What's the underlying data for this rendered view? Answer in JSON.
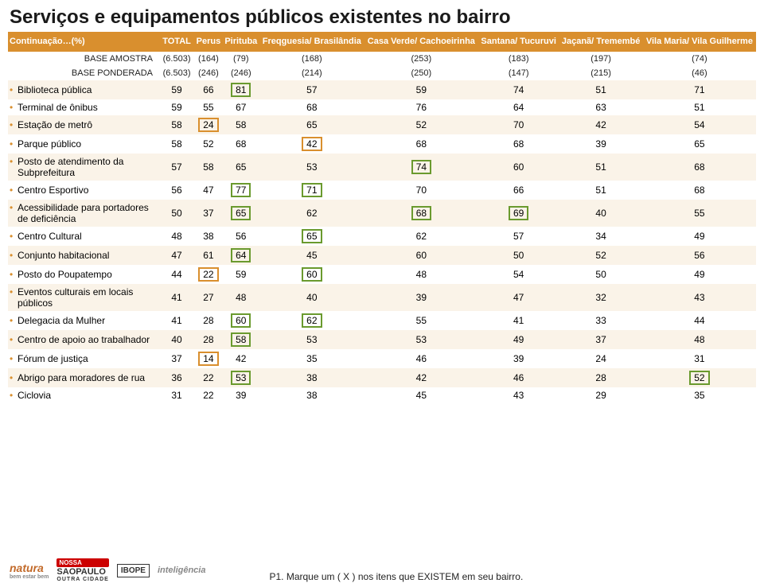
{
  "title": "Serviços e equipamentos públicos existentes no bairro",
  "footnote": "P1. Marque um ( X ) nos itens que EXISTEM em seu bairro.",
  "columns": [
    {
      "label": "Continuação…(%)",
      "width": 190
    },
    {
      "label": "TOTAL"
    },
    {
      "label": "Perus"
    },
    {
      "label": "Pirituba"
    },
    {
      "label": "Freqguesia/ Brasilândia"
    },
    {
      "label": "Casa Verde/ Cachoeirinha"
    },
    {
      "label": "Santana/ Tucuruvi"
    },
    {
      "label": "Jaçanã/ Tremembé"
    },
    {
      "label": "Vila Maria/ Vila Guilherme"
    }
  ],
  "base_rows": [
    {
      "label": "BASE AMOSTRA",
      "cells": [
        "(6.503)",
        "(164)",
        "(79)",
        "(168)",
        "(253)",
        "(183)",
        "(197)",
        "(74)"
      ]
    },
    {
      "label": "BASE PONDERADA",
      "cells": [
        "(6.503)",
        "(246)",
        "(246)",
        "(214)",
        "(250)",
        "(147)",
        "(215)",
        "(46)"
      ]
    }
  ],
  "rows": [
    {
      "label": "Biblioteca pública",
      "cells": [
        {
          "v": "59"
        },
        {
          "v": "66"
        },
        {
          "v": "81",
          "hl": "g"
        },
        {
          "v": "57"
        },
        {
          "v": "59"
        },
        {
          "v": "74"
        },
        {
          "v": "51"
        },
        {
          "v": "71"
        }
      ]
    },
    {
      "label": "Terminal de ônibus",
      "cells": [
        {
          "v": "59"
        },
        {
          "v": "55"
        },
        {
          "v": "67"
        },
        {
          "v": "68"
        },
        {
          "v": "76"
        },
        {
          "v": "64"
        },
        {
          "v": "63"
        },
        {
          "v": "51"
        }
      ]
    },
    {
      "label": "Estação de metrô",
      "cells": [
        {
          "v": "58"
        },
        {
          "v": "24",
          "hl": "o"
        },
        {
          "v": "58"
        },
        {
          "v": "65"
        },
        {
          "v": "52"
        },
        {
          "v": "70"
        },
        {
          "v": "42"
        },
        {
          "v": "54"
        }
      ]
    },
    {
      "label": "Parque público",
      "cells": [
        {
          "v": "58"
        },
        {
          "v": "52"
        },
        {
          "v": "68"
        },
        {
          "v": "42",
          "hl": "o"
        },
        {
          "v": "68"
        },
        {
          "v": "68"
        },
        {
          "v": "39"
        },
        {
          "v": "65"
        }
      ]
    },
    {
      "label": "Posto de atendimento da Subprefeitura",
      "cells": [
        {
          "v": "57"
        },
        {
          "v": "58"
        },
        {
          "v": "65"
        },
        {
          "v": "53"
        },
        {
          "v": "74",
          "hl": "g"
        },
        {
          "v": "60"
        },
        {
          "v": "51"
        },
        {
          "v": "68"
        }
      ]
    },
    {
      "label": "Centro Esportivo",
      "cells": [
        {
          "v": "56"
        },
        {
          "v": "47"
        },
        {
          "v": "77",
          "hl": "g"
        },
        {
          "v": "71",
          "hl": "g"
        },
        {
          "v": "70"
        },
        {
          "v": "66"
        },
        {
          "v": "51"
        },
        {
          "v": "68"
        }
      ]
    },
    {
      "label": "Acessibilidade para portadores de deficiência",
      "cells": [
        {
          "v": "50"
        },
        {
          "v": "37"
        },
        {
          "v": "65",
          "hl": "g"
        },
        {
          "v": "62"
        },
        {
          "v": "68",
          "hl": "g"
        },
        {
          "v": "69",
          "hl": "g"
        },
        {
          "v": "40"
        },
        {
          "v": "55"
        }
      ]
    },
    {
      "label": "Centro Cultural",
      "cells": [
        {
          "v": "48"
        },
        {
          "v": "38"
        },
        {
          "v": "56"
        },
        {
          "v": "65",
          "hl": "g"
        },
        {
          "v": "62"
        },
        {
          "v": "57"
        },
        {
          "v": "34"
        },
        {
          "v": "49"
        }
      ]
    },
    {
      "label": "Conjunto habitacional",
      "cells": [
        {
          "v": "47"
        },
        {
          "v": "61"
        },
        {
          "v": "64",
          "hl": "g"
        },
        {
          "v": "45"
        },
        {
          "v": "60"
        },
        {
          "v": "50"
        },
        {
          "v": "52"
        },
        {
          "v": "56"
        }
      ]
    },
    {
      "label": "Posto do Poupatempo",
      "cells": [
        {
          "v": "44"
        },
        {
          "v": "22",
          "hl": "o"
        },
        {
          "v": "59"
        },
        {
          "v": "60",
          "hl": "g"
        },
        {
          "v": "48"
        },
        {
          "v": "54"
        },
        {
          "v": "50"
        },
        {
          "v": "49"
        }
      ]
    },
    {
      "label": "Eventos culturais em locais públicos",
      "cells": [
        {
          "v": "41"
        },
        {
          "v": "27"
        },
        {
          "v": "48"
        },
        {
          "v": "40"
        },
        {
          "v": "39"
        },
        {
          "v": "47"
        },
        {
          "v": "32"
        },
        {
          "v": "43"
        }
      ]
    },
    {
      "label": "Delegacia da Mulher",
      "cells": [
        {
          "v": "41"
        },
        {
          "v": "28"
        },
        {
          "v": "60",
          "hl": "g"
        },
        {
          "v": "62",
          "hl": "g"
        },
        {
          "v": "55"
        },
        {
          "v": "41"
        },
        {
          "v": "33"
        },
        {
          "v": "44"
        }
      ]
    },
    {
      "label": "Centro de apoio ao trabalhador",
      "cells": [
        {
          "v": "40"
        },
        {
          "v": "28"
        },
        {
          "v": "58",
          "hl": "g"
        },
        {
          "v": "53"
        },
        {
          "v": "53"
        },
        {
          "v": "49"
        },
        {
          "v": "37"
        },
        {
          "v": "48"
        }
      ]
    },
    {
      "label": "Fórum de justiça",
      "cells": [
        {
          "v": "37"
        },
        {
          "v": "14",
          "hl": "o"
        },
        {
          "v": "42"
        },
        {
          "v": "35"
        },
        {
          "v": "46"
        },
        {
          "v": "39"
        },
        {
          "v": "24"
        },
        {
          "v": "31"
        }
      ]
    },
    {
      "label": "Abrigo para moradores de rua",
      "cells": [
        {
          "v": "36"
        },
        {
          "v": "22"
        },
        {
          "v": "53",
          "hl": "g"
        },
        {
          "v": "38"
        },
        {
          "v": "42"
        },
        {
          "v": "46"
        },
        {
          "v": "28"
        },
        {
          "v": "52",
          "hl": "g"
        }
      ]
    },
    {
      "label": "Ciclovia",
      "cells": [
        {
          "v": "31"
        },
        {
          "v": "22"
        },
        {
          "v": "39"
        },
        {
          "v": "38"
        },
        {
          "v": "45"
        },
        {
          "v": "43"
        },
        {
          "v": "29"
        },
        {
          "v": "35"
        }
      ]
    }
  ],
  "logos": {
    "natura": "natura",
    "sp_top": "NOSSA",
    "sp_bem": "bem estar bem",
    "sp_main": "SAOPAULO",
    "sp_sub": "OUTRA CIDADE",
    "ibope": "IBOPE",
    "intel": "inteligência"
  },
  "colors": {
    "header_bg": "#d98f2e",
    "row_alt": "#faf3e8",
    "hl_green": "#6a9a2e",
    "hl_orange": "#d98f2e"
  }
}
